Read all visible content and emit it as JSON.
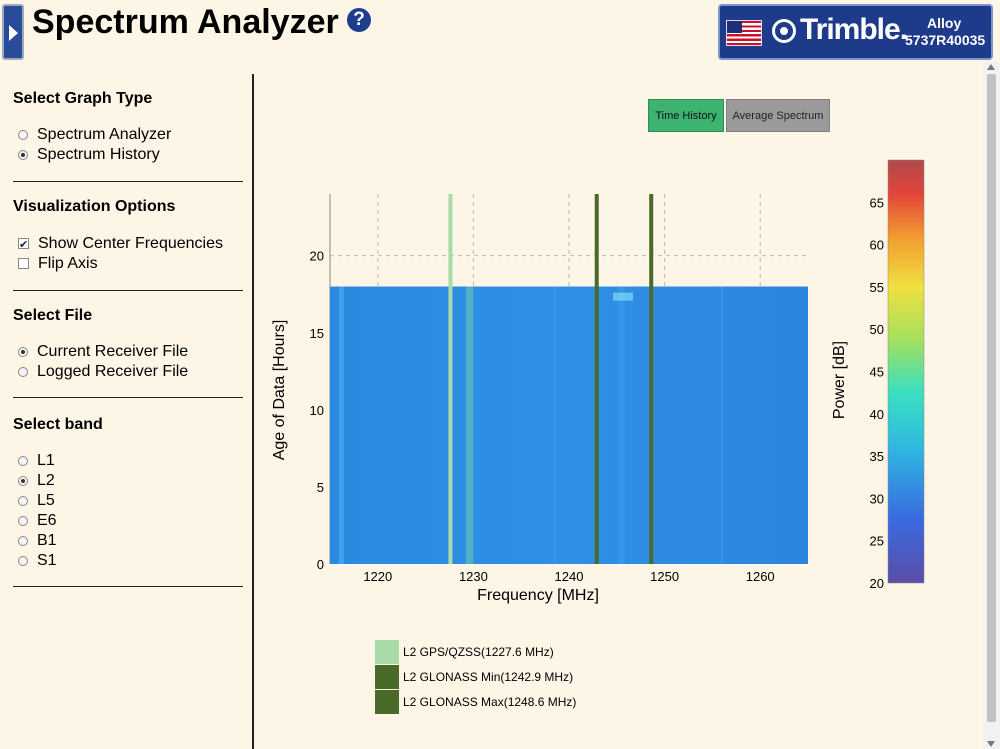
{
  "header": {
    "title": "Spectrum Analyzer"
  },
  "brand": {
    "name": "Trimble.",
    "model": "Alloy",
    "serial": "5737R40035"
  },
  "sidebar": {
    "graph_type": {
      "title": "Select Graph Type",
      "options": [
        {
          "label": "Spectrum Analyzer",
          "selected": false
        },
        {
          "label": "Spectrum History",
          "selected": true
        }
      ]
    },
    "visualization": {
      "title": "Visualization Options",
      "options": [
        {
          "label": "Show Center Frequencies",
          "checked": true
        },
        {
          "label": "Flip Axis",
          "checked": false
        }
      ]
    },
    "file": {
      "title": "Select File",
      "options": [
        {
          "label": "Current Receiver File",
          "selected": true
        },
        {
          "label": "Logged Receiver File",
          "selected": false
        }
      ]
    },
    "band": {
      "title": "Select band",
      "options": [
        {
          "label": "L1",
          "selected": false
        },
        {
          "label": "L2",
          "selected": true
        },
        {
          "label": "L5",
          "selected": false
        },
        {
          "label": "E6",
          "selected": false
        },
        {
          "label": "B1",
          "selected": false
        },
        {
          "label": "S1",
          "selected": false
        }
      ]
    }
  },
  "tabs": [
    {
      "label": "Time History",
      "active": true
    },
    {
      "label": "Average Spectrum",
      "active": false
    }
  ],
  "chart_data": {
    "type": "heatmap",
    "xlabel": "Frequency [MHz]",
    "ylabel": "Age of Data [Hours]",
    "xlim": [
      1215,
      1265
    ],
    "ylim": [
      0,
      24
    ],
    "xticks": [
      1220,
      1230,
      1240,
      1250,
      1260
    ],
    "yticks": [
      0,
      5,
      10,
      15,
      20
    ],
    "data_extent_hours": 18,
    "grid": true,
    "colorbar": {
      "label": "Power [dB]",
      "range": [
        20,
        70
      ],
      "ticks": [
        20,
        25,
        30,
        35,
        40,
        45,
        50,
        55,
        60,
        65
      ]
    },
    "center_frequencies": [
      {
        "name": "L2 GPS/QZSS(1227.6 MHz)",
        "freq": 1227.6,
        "color": "#a8dba8"
      },
      {
        "name": "L2 GLONASS Min(1242.9 MHz)",
        "freq": 1242.9,
        "color": "#4a6a2a"
      },
      {
        "name": "L2 GLONASS Max(1248.6 MHz)",
        "freq": 1248.6,
        "color": "#4a6a2a"
      }
    ]
  },
  "colors": {
    "heatmap_base": "#2a8ae0",
    "panel_bg": "#fdf5e6",
    "brand_bg": "#1e3a8a"
  }
}
